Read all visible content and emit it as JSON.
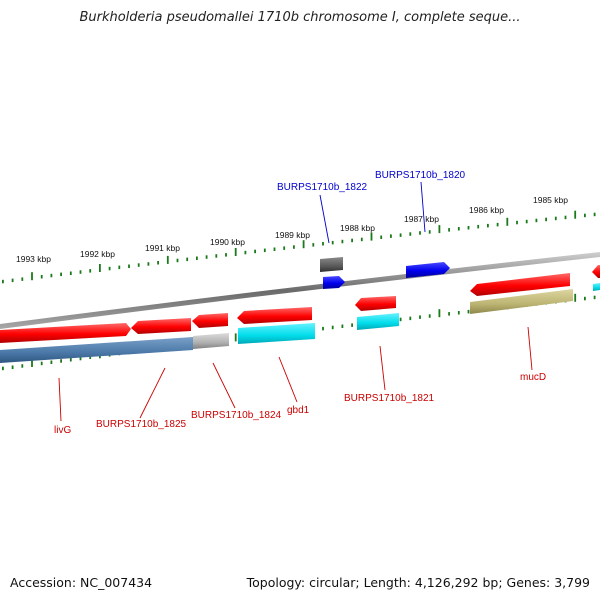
{
  "title": "Burkholderia pseudomallei 1710b chromosome I, complete seque...",
  "footer": {
    "accession": "Accession: NC_007434",
    "summary": "Topology: circular; Length: 4,126,292 bp; Genes: 3,799"
  },
  "scale_labels": [
    "1993 kbp",
    "1992 kbp",
    "1991 kbp",
    "1990 kbp",
    "1989 kbp",
    "1988 kbp",
    "1987 kbp",
    "1986 kbp",
    "1985 kbp"
  ],
  "gene_labels": [
    {
      "text": "BURPS1710b_1822",
      "color": "#0000cc"
    },
    {
      "text": "BURPS1710b_1820",
      "color": "#0000cc"
    },
    {
      "text": "livG",
      "color": "#cc0000"
    },
    {
      "text": "BURPS1710b_1825",
      "color": "#cc0000"
    },
    {
      "text": "BURPS1710b_1824",
      "color": "#cc0000"
    },
    {
      "text": "gbd1",
      "color": "#cc0000"
    },
    {
      "text": "BURPS1710b_1821",
      "color": "#cc0000"
    },
    {
      "text": "mucD",
      "color": "#cc0000"
    }
  ],
  "colors": {
    "forward_gene": "#ff0000",
    "forward_gene_dark": "#c00000",
    "reverse_gene": "#0000ff",
    "cyan_feature": "#00e5ee",
    "steelblue_feature": "#4f7fae",
    "khaki_feature": "#c8c07c",
    "gray_feature": "#b0b0b0",
    "dark_feature": "#555555",
    "chromosome": "#808080",
    "tick": "#1a7a1a"
  }
}
